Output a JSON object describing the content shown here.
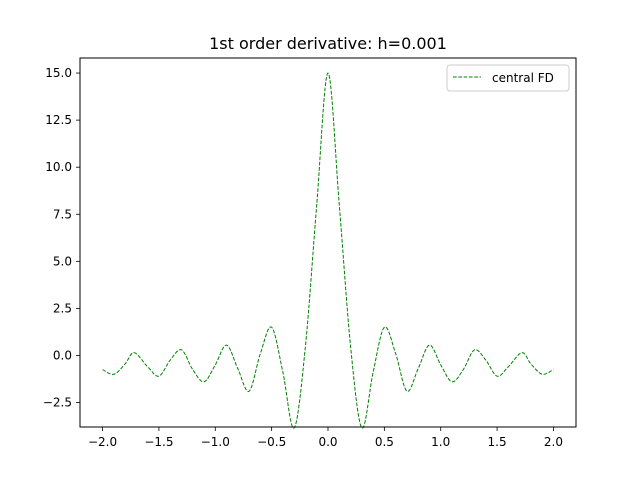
{
  "chart_data": {
    "type": "line",
    "title": "1st order derivative: h=0.001",
    "xlabel": "",
    "ylabel": "",
    "xlim": [
      -2.2,
      2.2
    ],
    "ylim": [
      -3.8,
      15.8
    ],
    "x_ticks": [
      -2.0,
      -1.5,
      -1.0,
      -0.5,
      0.0,
      0.5,
      1.0,
      1.5,
      2.0
    ],
    "x_tick_labels": [
      "−2.0",
      "−1.5",
      "−1.0",
      "−0.5",
      "0.0",
      "0.5",
      "1.0",
      "1.5",
      "2.0"
    ],
    "y_ticks": [
      -2.5,
      0.0,
      2.5,
      5.0,
      7.5,
      10.0,
      12.5,
      15.0
    ],
    "y_tick_labels": [
      "−2.5",
      "0.0",
      "2.5",
      "5.0",
      "7.5",
      "10.0",
      "12.5",
      "15.0"
    ],
    "grid": false,
    "legend_position": "top-right",
    "series": [
      {
        "name": "central FD",
        "color": "#008000",
        "line_style": "dashed",
        "x": [
          -2.0,
          -1.9,
          -1.8,
          -1.72,
          -1.6,
          -1.5,
          -1.4,
          -1.3,
          -1.2,
          -1.1,
          -1.0,
          -0.9,
          -0.8,
          -0.7,
          -0.6,
          -0.5,
          -0.4,
          -0.3,
          -0.2,
          -0.1,
          0.0,
          0.1,
          0.2,
          0.3,
          0.4,
          0.5,
          0.6,
          0.7,
          0.8,
          0.9,
          1.0,
          1.1,
          1.2,
          1.3,
          1.4,
          1.5,
          1.6,
          1.72,
          1.8,
          1.9,
          2.0
        ],
        "y": [
          -0.75,
          -1.0,
          -0.45,
          0.15,
          -0.6,
          -1.1,
          -0.25,
          0.3,
          -0.75,
          -1.4,
          -0.5,
          0.55,
          -0.7,
          -1.9,
          0.1,
          1.5,
          -0.9,
          -3.85,
          0.5,
          8.0,
          15.0,
          8.0,
          0.5,
          -3.85,
          -0.9,
          1.5,
          0.1,
          -1.9,
          -0.7,
          0.55,
          -0.5,
          -1.4,
          -0.75,
          0.3,
          -0.25,
          -1.1,
          -0.6,
          0.15,
          -0.45,
          -1.0,
          -0.75
        ]
      }
    ]
  }
}
